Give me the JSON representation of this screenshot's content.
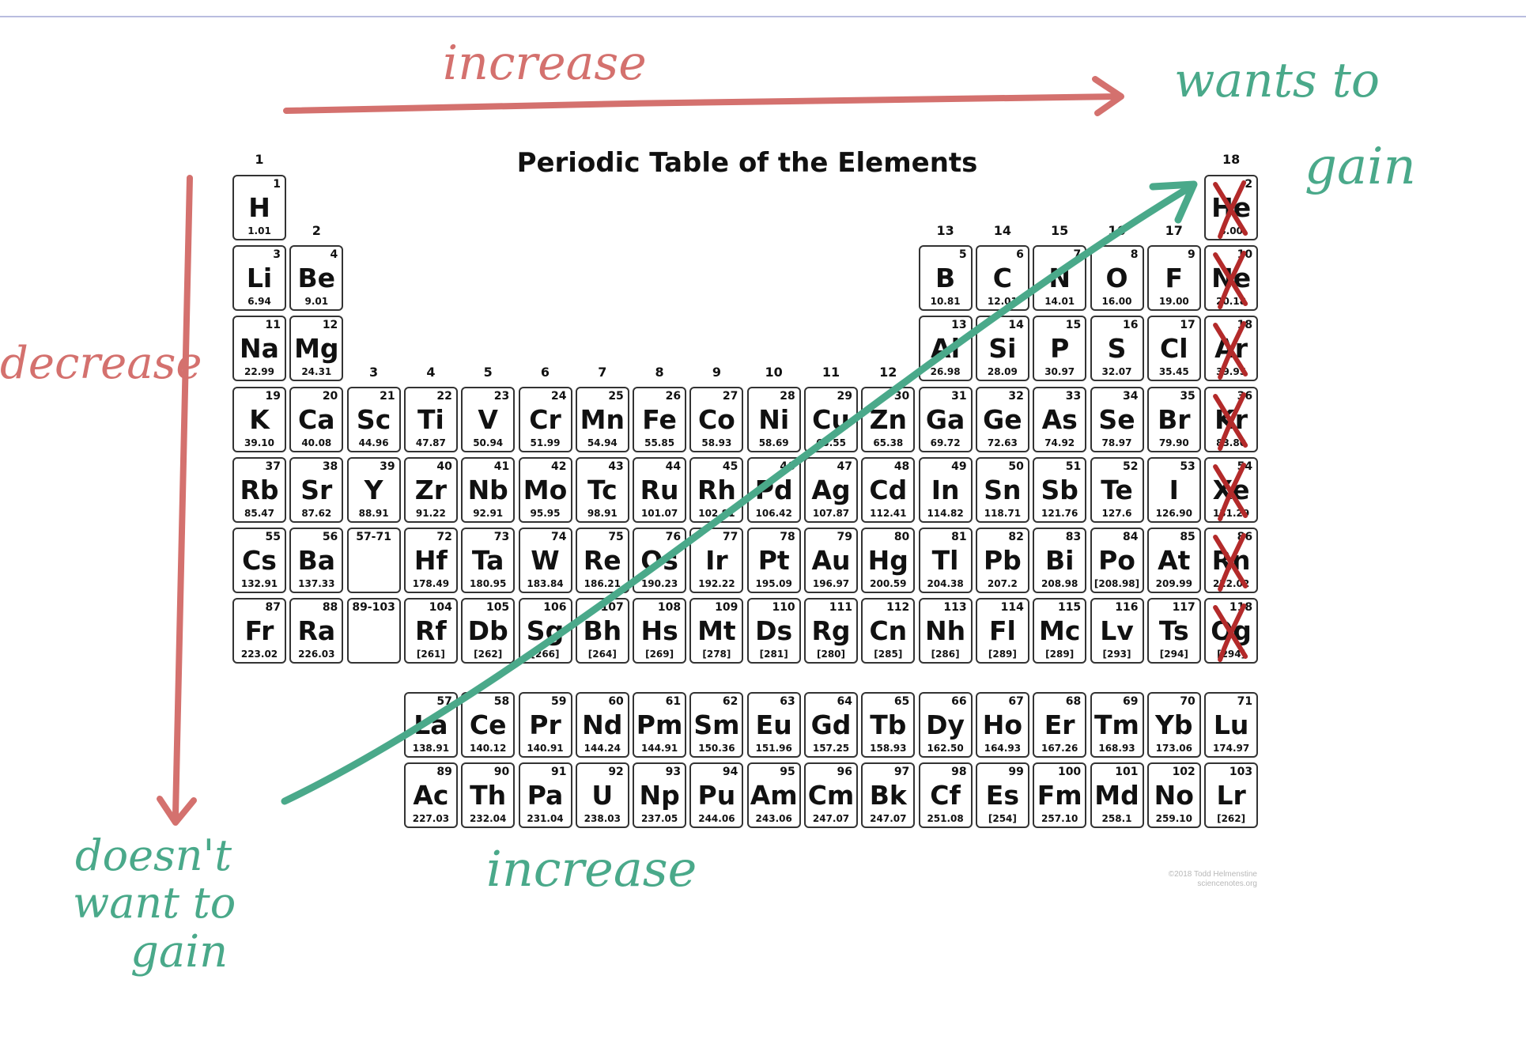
{
  "title": "Periodic Table of the Elements",
  "credit": [
    "©2018 Todd Helmenstine",
    "sciencenotes.org"
  ],
  "groups": [
    "1",
    "2",
    "3",
    "4",
    "5",
    "6",
    "7",
    "8",
    "9",
    "10",
    "11",
    "12",
    "13",
    "14",
    "15",
    "16",
    "17",
    "18"
  ],
  "elements": [
    {
      "n": "1",
      "s": "H",
      "m": "1.01",
      "r": 1,
      "c": 1
    },
    {
      "n": "2",
      "s": "He",
      "m": "4.00",
      "r": 1,
      "c": 18
    },
    {
      "n": "3",
      "s": "Li",
      "m": "6.94",
      "r": 2,
      "c": 1
    },
    {
      "n": "4",
      "s": "Be",
      "m": "9.01",
      "r": 2,
      "c": 2
    },
    {
      "n": "5",
      "s": "B",
      "m": "10.81",
      "r": 2,
      "c": 13
    },
    {
      "n": "6",
      "s": "C",
      "m": "12.01",
      "r": 2,
      "c": 14
    },
    {
      "n": "7",
      "s": "N",
      "m": "14.01",
      "r": 2,
      "c": 15
    },
    {
      "n": "8",
      "s": "O",
      "m": "16.00",
      "r": 2,
      "c": 16
    },
    {
      "n": "9",
      "s": "F",
      "m": "19.00",
      "r": 2,
      "c": 17
    },
    {
      "n": "10",
      "s": "Ne",
      "m": "20.18",
      "r": 2,
      "c": 18
    },
    {
      "n": "11",
      "s": "Na",
      "m": "22.99",
      "r": 3,
      "c": 1
    },
    {
      "n": "12",
      "s": "Mg",
      "m": "24.31",
      "r": 3,
      "c": 2
    },
    {
      "n": "13",
      "s": "Al",
      "m": "26.98",
      "r": 3,
      "c": 13
    },
    {
      "n": "14",
      "s": "Si",
      "m": "28.09",
      "r": 3,
      "c": 14
    },
    {
      "n": "15",
      "s": "P",
      "m": "30.97",
      "r": 3,
      "c": 15
    },
    {
      "n": "16",
      "s": "S",
      "m": "32.07",
      "r": 3,
      "c": 16
    },
    {
      "n": "17",
      "s": "Cl",
      "m": "35.45",
      "r": 3,
      "c": 17
    },
    {
      "n": "18",
      "s": "Ar",
      "m": "39.95",
      "r": 3,
      "c": 18
    },
    {
      "n": "19",
      "s": "K",
      "m": "39.10",
      "r": 4,
      "c": 1
    },
    {
      "n": "20",
      "s": "Ca",
      "m": "40.08",
      "r": 4,
      "c": 2
    },
    {
      "n": "21",
      "s": "Sc",
      "m": "44.96",
      "r": 4,
      "c": 3
    },
    {
      "n": "22",
      "s": "Ti",
      "m": "47.87",
      "r": 4,
      "c": 4
    },
    {
      "n": "23",
      "s": "V",
      "m": "50.94",
      "r": 4,
      "c": 5
    },
    {
      "n": "24",
      "s": "Cr",
      "m": "51.99",
      "r": 4,
      "c": 6
    },
    {
      "n": "25",
      "s": "Mn",
      "m": "54.94",
      "r": 4,
      "c": 7
    },
    {
      "n": "26",
      "s": "Fe",
      "m": "55.85",
      "r": 4,
      "c": 8
    },
    {
      "n": "27",
      "s": "Co",
      "m": "58.93",
      "r": 4,
      "c": 9
    },
    {
      "n": "28",
      "s": "Ni",
      "m": "58.69",
      "r": 4,
      "c": 10
    },
    {
      "n": "29",
      "s": "Cu",
      "m": "63.55",
      "r": 4,
      "c": 11
    },
    {
      "n": "30",
      "s": "Zn",
      "m": "65.38",
      "r": 4,
      "c": 12
    },
    {
      "n": "31",
      "s": "Ga",
      "m": "69.72",
      "r": 4,
      "c": 13
    },
    {
      "n": "32",
      "s": "Ge",
      "m": "72.63",
      "r": 4,
      "c": 14
    },
    {
      "n": "33",
      "s": "As",
      "m": "74.92",
      "r": 4,
      "c": 15
    },
    {
      "n": "34",
      "s": "Se",
      "m": "78.97",
      "r": 4,
      "c": 16
    },
    {
      "n": "35",
      "s": "Br",
      "m": "79.90",
      "r": 4,
      "c": 17
    },
    {
      "n": "36",
      "s": "Kr",
      "m": "83.80",
      "r": 4,
      "c": 18
    },
    {
      "n": "37",
      "s": "Rb",
      "m": "85.47",
      "r": 5,
      "c": 1
    },
    {
      "n": "38",
      "s": "Sr",
      "m": "87.62",
      "r": 5,
      "c": 2
    },
    {
      "n": "39",
      "s": "Y",
      "m": "88.91",
      "r": 5,
      "c": 3
    },
    {
      "n": "40",
      "s": "Zr",
      "m": "91.22",
      "r": 5,
      "c": 4
    },
    {
      "n": "41",
      "s": "Nb",
      "m": "92.91",
      "r": 5,
      "c": 5
    },
    {
      "n": "42",
      "s": "Mo",
      "m": "95.95",
      "r": 5,
      "c": 6
    },
    {
      "n": "43",
      "s": "Tc",
      "m": "98.91",
      "r": 5,
      "c": 7
    },
    {
      "n": "44",
      "s": "Ru",
      "m": "101.07",
      "r": 5,
      "c": 8
    },
    {
      "n": "45",
      "s": "Rh",
      "m": "102.91",
      "r": 5,
      "c": 9
    },
    {
      "n": "46",
      "s": "Pd",
      "m": "106.42",
      "r": 5,
      "c": 10
    },
    {
      "n": "47",
      "s": "Ag",
      "m": "107.87",
      "r": 5,
      "c": 11
    },
    {
      "n": "48",
      "s": "Cd",
      "m": "112.41",
      "r": 5,
      "c": 12
    },
    {
      "n": "49",
      "s": "In",
      "m": "114.82",
      "r": 5,
      "c": 13
    },
    {
      "n": "50",
      "s": "Sn",
      "m": "118.71",
      "r": 5,
      "c": 14
    },
    {
      "n": "51",
      "s": "Sb",
      "m": "121.76",
      "r": 5,
      "c": 15
    },
    {
      "n": "52",
      "s": "Te",
      "m": "127.6",
      "r": 5,
      "c": 16
    },
    {
      "n": "53",
      "s": "I",
      "m": "126.90",
      "r": 5,
      "c": 17
    },
    {
      "n": "54",
      "s": "Xe",
      "m": "131.29",
      "r": 5,
      "c": 18
    },
    {
      "n": "55",
      "s": "Cs",
      "m": "132.91",
      "r": 6,
      "c": 1
    },
    {
      "n": "56",
      "s": "Ba",
      "m": "137.33",
      "r": 6,
      "c": 2
    },
    {
      "n": "57-71",
      "s": "",
      "m": "",
      "r": 6,
      "c": 3,
      "empty": true
    },
    {
      "n": "72",
      "s": "Hf",
      "m": "178.49",
      "r": 6,
      "c": 4
    },
    {
      "n": "73",
      "s": "Ta",
      "m": "180.95",
      "r": 6,
      "c": 5
    },
    {
      "n": "74",
      "s": "W",
      "m": "183.84",
      "r": 6,
      "c": 6
    },
    {
      "n": "75",
      "s": "Re",
      "m": "186.21",
      "r": 6,
      "c": 7
    },
    {
      "n": "76",
      "s": "Os",
      "m": "190.23",
      "r": 6,
      "c": 8
    },
    {
      "n": "77",
      "s": "Ir",
      "m": "192.22",
      "r": 6,
      "c": 9
    },
    {
      "n": "78",
      "s": "Pt",
      "m": "195.09",
      "r": 6,
      "c": 10
    },
    {
      "n": "79",
      "s": "Au",
      "m": "196.97",
      "r": 6,
      "c": 11
    },
    {
      "n": "80",
      "s": "Hg",
      "m": "200.59",
      "r": 6,
      "c": 12
    },
    {
      "n": "81",
      "s": "Tl",
      "m": "204.38",
      "r": 6,
      "c": 13
    },
    {
      "n": "82",
      "s": "Pb",
      "m": "207.2",
      "r": 6,
      "c": 14
    },
    {
      "n": "83",
      "s": "Bi",
      "m": "208.98",
      "r": 6,
      "c": 15
    },
    {
      "n": "84",
      "s": "Po",
      "m": "[208.98]",
      "r": 6,
      "c": 16
    },
    {
      "n": "85",
      "s": "At",
      "m": "209.99",
      "r": 6,
      "c": 17
    },
    {
      "n": "86",
      "s": "Rn",
      "m": "222.02",
      "r": 6,
      "c": 18
    },
    {
      "n": "87",
      "s": "Fr",
      "m": "223.02",
      "r": 7,
      "c": 1
    },
    {
      "n": "88",
      "s": "Ra",
      "m": "226.03",
      "r": 7,
      "c": 2
    },
    {
      "n": "89-103",
      "s": "",
      "m": "",
      "r": 7,
      "c": 3,
      "empty": true
    },
    {
      "n": "104",
      "s": "Rf",
      "m": "[261]",
      "r": 7,
      "c": 4
    },
    {
      "n": "105",
      "s": "Db",
      "m": "[262]",
      "r": 7,
      "c": 5
    },
    {
      "n": "106",
      "s": "Sg",
      "m": "[266]",
      "r": 7,
      "c": 6
    },
    {
      "n": "107",
      "s": "Bh",
      "m": "[264]",
      "r": 7,
      "c": 7
    },
    {
      "n": "108",
      "s": "Hs",
      "m": "[269]",
      "r": 7,
      "c": 8
    },
    {
      "n": "109",
      "s": "Mt",
      "m": "[278]",
      "r": 7,
      "c": 9
    },
    {
      "n": "110",
      "s": "Ds",
      "m": "[281]",
      "r": 7,
      "c": 10
    },
    {
      "n": "111",
      "s": "Rg",
      "m": "[280]",
      "r": 7,
      "c": 11
    },
    {
      "n": "112",
      "s": "Cn",
      "m": "[285]",
      "r": 7,
      "c": 12
    },
    {
      "n": "113",
      "s": "Nh",
      "m": "[286]",
      "r": 7,
      "c": 13
    },
    {
      "n": "114",
      "s": "Fl",
      "m": "[289]",
      "r": 7,
      "c": 14
    },
    {
      "n": "115",
      "s": "Mc",
      "m": "[289]",
      "r": 7,
      "c": 15
    },
    {
      "n": "116",
      "s": "Lv",
      "m": "[293]",
      "r": 7,
      "c": 16
    },
    {
      "n": "117",
      "s": "Ts",
      "m": "[294]",
      "r": 7,
      "c": 17
    },
    {
      "n": "118",
      "s": "Og",
      "m": "[294]",
      "r": 7,
      "c": 18
    },
    {
      "n": "57",
      "s": "La",
      "m": "138.91",
      "r": 8,
      "c": 4
    },
    {
      "n": "58",
      "s": "Ce",
      "m": "140.12",
      "r": 8,
      "c": 5
    },
    {
      "n": "59",
      "s": "Pr",
      "m": "140.91",
      "r": 8,
      "c": 6
    },
    {
      "n": "60",
      "s": "Nd",
      "m": "144.24",
      "r": 8,
      "c": 7
    },
    {
      "n": "61",
      "s": "Pm",
      "m": "144.91",
      "r": 8,
      "c": 8
    },
    {
      "n": "62",
      "s": "Sm",
      "m": "150.36",
      "r": 8,
      "c": 9
    },
    {
      "n": "63",
      "s": "Eu",
      "m": "151.96",
      "r": 8,
      "c": 10
    },
    {
      "n": "64",
      "s": "Gd",
      "m": "157.25",
      "r": 8,
      "c": 11
    },
    {
      "n": "65",
      "s": "Tb",
      "m": "158.93",
      "r": 8,
      "c": 12
    },
    {
      "n": "66",
      "s": "Dy",
      "m": "162.50",
      "r": 8,
      "c": 13
    },
    {
      "n": "67",
      "s": "Ho",
      "m": "164.93",
      "r": 8,
      "c": 14
    },
    {
      "n": "68",
      "s": "Er",
      "m": "167.26",
      "r": 8,
      "c": 15
    },
    {
      "n": "69",
      "s": "Tm",
      "m": "168.93",
      "r": 8,
      "c": 16
    },
    {
      "n": "70",
      "s": "Yb",
      "m": "173.06",
      "r": 8,
      "c": 17
    },
    {
      "n": "71",
      "s": "Lu",
      "m": "174.97",
      "r": 8,
      "c": 18
    },
    {
      "n": "89",
      "s": "Ac",
      "m": "227.03",
      "r": 9,
      "c": 4
    },
    {
      "n": "90",
      "s": "Th",
      "m": "232.04",
      "r": 9,
      "c": 5
    },
    {
      "n": "91",
      "s": "Pa",
      "m": "231.04",
      "r": 9,
      "c": 6
    },
    {
      "n": "92",
      "s": "U",
      "m": "238.03",
      "r": 9,
      "c": 7
    },
    {
      "n": "93",
      "s": "Np",
      "m": "237.05",
      "r": 9,
      "c": 8
    },
    {
      "n": "94",
      "s": "Pu",
      "m": "244.06",
      "r": 9,
      "c": 9
    },
    {
      "n": "95",
      "s": "Am",
      "m": "243.06",
      "r": 9,
      "c": 10
    },
    {
      "n": "96",
      "s": "Cm",
      "m": "247.07",
      "r": 9,
      "c": 11
    },
    {
      "n": "97",
      "s": "Bk",
      "m": "247.07",
      "r": 9,
      "c": 12
    },
    {
      "n": "98",
      "s": "Cf",
      "m": "251.08",
      "r": 9,
      "c": 13
    },
    {
      "n": "99",
      "s": "Es",
      "m": "[254]",
      "r": 9,
      "c": 14
    },
    {
      "n": "100",
      "s": "Fm",
      "m": "257.10",
      "r": 9,
      "c": 15
    },
    {
      "n": "101",
      "s": "Md",
      "m": "258.1",
      "r": 9,
      "c": 16
    },
    {
      "n": "102",
      "s": "No",
      "m": "259.10",
      "r": 9,
      "c": 17
    },
    {
      "n": "103",
      "s": "Lr",
      "m": "[262]",
      "r": 9,
      "c": 18
    }
  ],
  "crossed_out": [
    "He",
    "Ne",
    "Ar",
    "Kr",
    "Xe",
    "Rn",
    "Og"
  ],
  "annotations": {
    "top": "increase",
    "left": "decrease",
    "bottom": "increase",
    "top_right": [
      "wants to",
      "gain"
    ],
    "bottom_left": [
      "doesn't",
      "want to",
      "gain"
    ]
  },
  "colors": {
    "red_ink": "#d4716e",
    "green_ink": "#4aa98a",
    "cross_ink": "#b32a2a"
  }
}
